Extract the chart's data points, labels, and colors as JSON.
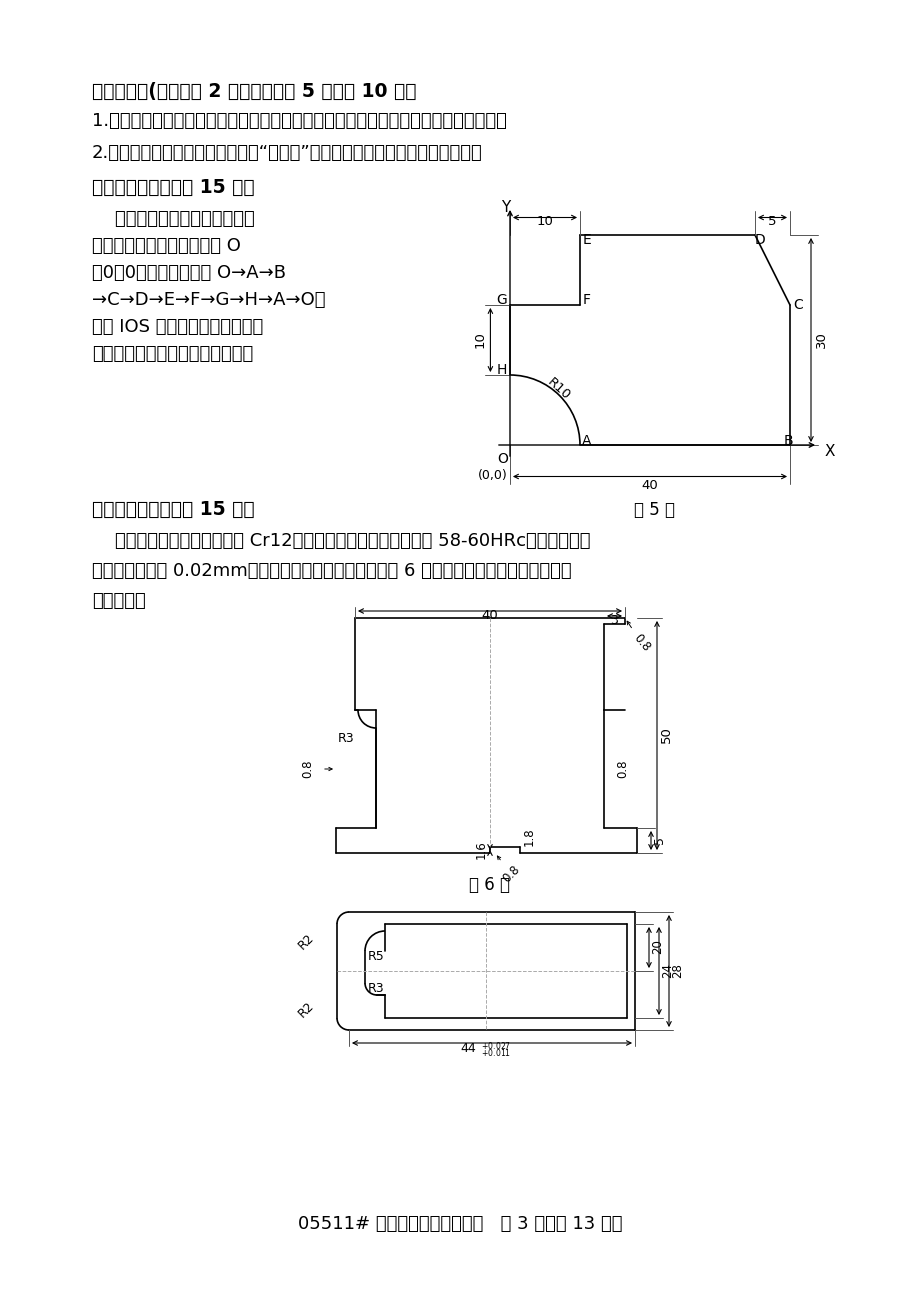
{
  "bg_color": "#ffffff",
  "line_color": "#000000",
  "title": "四、简答题(本大题共 2 小题，每小题 5 分，共 10 分）",
  "q1": "1.解释电火花加工冷冲模具型孔，保证配合间隙要求的间接配合法，并分析它的特点。",
  "q2": "2.简单分析抛光过程中可能出现的“针孔状”缺陷的原因并提出解决问题的方法。",
  "sec5_title": "五、编程题（本大题 15 分）",
  "sec5_text1": "    采用电火花线切割加工图示的",
  "sec5_text2": "模具零件，切割起点为原点 O",
  "sec5_text3": "（0，0），切割路线为 O→A→B",
  "sec5_text4": "→C→D→E→F→G→H→A→O，",
  "sec5_text5": "试用 IOS 格式编制电火花线切割",
  "sec5_text6": "程序（采用相对尺寸方式编程）。",
  "fig5_caption": "题 5 图",
  "sec6_title": "六、综合题（本大题 15 分）",
  "sec6_text1": "    冲裁凸模零件如图。材料为 Cr12，热处理为淬火、回火，硬度 58-60HRc，成形尺寸与",
  "sec6_text2": "凹模间隙不超过 0.02mm，拟采用压印修锉法。试按照题 6 表的项目，制定这个零件的加工",
  "sec6_text3": "工艺过程。",
  "fig6_caption": "题 6 图",
  "footer": "05511# 现代模具制造技术试题   第 3 页（共 13 页）"
}
